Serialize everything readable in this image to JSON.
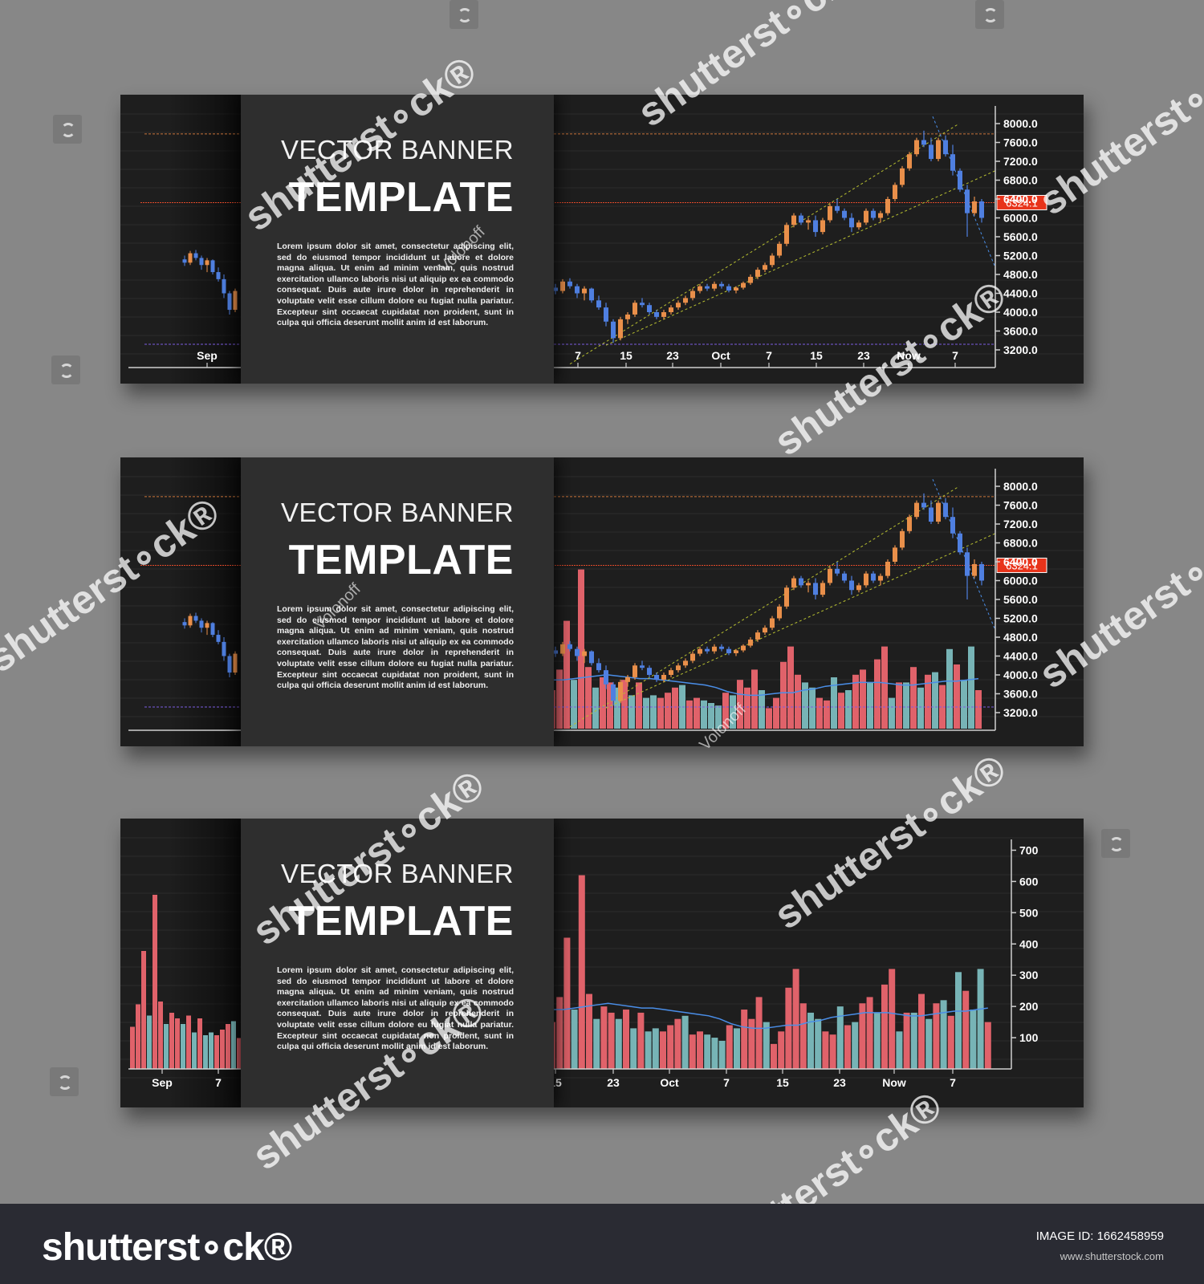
{
  "banner": {
    "title_line1": "VECTOR BANNER",
    "title_line2": "TEMPLATE",
    "body": "Lorem ipsum dolor sit amet, consectetur adipiscing elit, sed do eiusmod tempor incididunt ut labore et dolore magna aliqua. Ut enim ad minim veniam, quis nostrud exercitation ullamco laboris nisi ut aliquip ex ea commodo consequat. Duis aute irure dolor in reprehenderit in voluptate velit esse cillum dolore eu fugiat nulla pariatur. Excepteur sint occaecat cupidatat non proident, sunt in culpa qui officia deserunt mollit anim id est laborum."
  },
  "footer": {
    "logo": "shutterst∘ck®",
    "image_id": "IMAGE ID: 1662458959",
    "site": "www.shutterstock.com"
  },
  "watermark": {
    "text": "shutterst∘ck®",
    "author": "Volonoff"
  },
  "colors": {
    "candle_up": "#e98f4a",
    "candle_down": "#4f7fe0",
    "volume_up": "#e0626a",
    "volume_down": "#77b4b6",
    "price_line": "#e24a2a",
    "price_label_bg": "#e8331a",
    "resistance": "#c8733a",
    "support": "#7b5ce0",
    "channel": "#b8c030",
    "trend_down": "#4a8ee8",
    "moving_average": "#4a8ee8"
  },
  "chart_data": [
    {
      "type": "candlestick",
      "panel": "top",
      "y_ticks": [
        "8000.0",
        "7600.0",
        "7200.0",
        "6800.0",
        "6400.0",
        "6000.0",
        "5600.0",
        "5200.0",
        "4800.0",
        "4400.0",
        "4000.0",
        "3600.0",
        "3200.0"
      ],
      "ylim": [
        3200,
        8000
      ],
      "x_ticks": [
        "Sep",
        "7",
        "15",
        "23",
        "Oct",
        "7",
        "15",
        "23",
        "Now",
        "7"
      ],
      "current_price": "6324.1",
      "levels": {
        "resistance": 7780,
        "current": 6324.1,
        "support": 3320
      },
      "ohlc": [
        [
          4520,
          4600,
          4380,
          4450
        ],
        [
          4450,
          4700,
          4400,
          4650
        ],
        [
          4650,
          4720,
          4500,
          4550
        ],
        [
          4550,
          4600,
          4300,
          4400
        ],
        [
          4400,
          4550,
          4250,
          4500
        ],
        [
          4500,
          4520,
          4200,
          4250
        ],
        [
          4250,
          4350,
          4050,
          4100
        ],
        [
          4100,
          4200,
          3700,
          3800
        ],
        [
          3800,
          3850,
          3350,
          3450
        ],
        [
          3450,
          3900,
          3400,
          3850
        ],
        [
          3850,
          4000,
          3750,
          3950
        ],
        [
          3950,
          4250,
          3900,
          4200
        ],
        [
          4200,
          4300,
          4100,
          4150
        ],
        [
          4150,
          4200,
          3950,
          4000
        ],
        [
          4000,
          4050,
          3850,
          3900
        ],
        [
          3900,
          4050,
          3850,
          4000
        ],
        [
          4000,
          4150,
          3950,
          4100
        ],
        [
          4100,
          4250,
          4050,
          4200
        ],
        [
          4200,
          4350,
          4150,
          4300
        ],
        [
          4300,
          4500,
          4250,
          4450
        ],
        [
          4450,
          4600,
          4400,
          4550
        ],
        [
          4550,
          4600,
          4450,
          4500
        ],
        [
          4500,
          4650,
          4450,
          4600
        ],
        [
          4600,
          4650,
          4500,
          4550
        ],
        [
          4550,
          4600,
          4420,
          4460
        ],
        [
          4460,
          4550,
          4400,
          4520
        ],
        [
          4520,
          4650,
          4480,
          4620
        ],
        [
          4620,
          4800,
          4580,
          4750
        ],
        [
          4750,
          4950,
          4700,
          4900
        ],
        [
          4900,
          5050,
          4850,
          5000
        ],
        [
          5000,
          5250,
          4950,
          5200
        ],
        [
          5200,
          5500,
          5150,
          5450
        ],
        [
          5450,
          5900,
          5400,
          5850
        ],
        [
          5850,
          6100,
          5800,
          6050
        ],
        [
          6050,
          6100,
          5850,
          5900
        ],
        [
          5900,
          6000,
          5750,
          5950
        ],
        [
          5950,
          6050,
          5600,
          5700
        ],
        [
          5700,
          6000,
          5650,
          5950
        ],
        [
          5950,
          6300,
          5900,
          6250
        ],
        [
          6250,
          6400,
          6100,
          6150
        ],
        [
          6150,
          6200,
          5950,
          6000
        ],
        [
          6000,
          6100,
          5700,
          5800
        ],
        [
          5800,
          5950,
          5750,
          5900
        ],
        [
          5900,
          6200,
          5850,
          6150
        ],
        [
          6150,
          6200,
          5950,
          6000
        ],
        [
          6000,
          6150,
          5900,
          6100
        ],
        [
          6100,
          6450,
          6050,
          6400
        ],
        [
          6400,
          6750,
          6350,
          6700
        ],
        [
          6700,
          7100,
          6650,
          7050
        ],
        [
          7050,
          7400,
          7000,
          7350
        ],
        [
          7350,
          7700,
          7300,
          7650
        ],
        [
          7650,
          7850,
          7500,
          7550
        ],
        [
          7550,
          7700,
          7200,
          7250
        ],
        [
          7250,
          7700,
          7200,
          7650
        ],
        [
          7650,
          7750,
          7300,
          7350
        ],
        [
          7350,
          7550,
          6900,
          7000
        ],
        [
          7000,
          7050,
          6550,
          6600
        ],
        [
          6600,
          6700,
          5600,
          6100
        ],
        [
          6100,
          6450,
          6050,
          6350
        ],
        [
          6350,
          6400,
          5900,
          6000
        ]
      ]
    },
    {
      "type": "candlestick+volume",
      "panel": "middle",
      "y_ticks": [
        "8000.0",
        "7600.0",
        "7200.0",
        "6800.0",
        "6400.0",
        "6000.0",
        "5600.0",
        "5200.0",
        "4800.0",
        "4400.0",
        "4000.0",
        "3600.0",
        "3200.0"
      ],
      "ylim": [
        3200,
        8000
      ],
      "current_price": "6324.1",
      "note": "same OHLC series as top panel with volume bars overlaid"
    },
    {
      "type": "bar",
      "panel": "bottom",
      "y_ticks": [
        "700",
        "600",
        "500",
        "400",
        "300",
        "200",
        "100"
      ],
      "ylim": [
        0,
        750
      ],
      "x_ticks": [
        "Sep",
        "7",
        "15",
        "23",
        "Oct",
        "7",
        "15",
        "23",
        "Now",
        "7"
      ],
      "volume": [
        150,
        230,
        420,
        190,
        620,
        240,
        160,
        200,
        180,
        160,
        190,
        130,
        180,
        120,
        130,
        120,
        140,
        160,
        170,
        110,
        120,
        110,
        100,
        90,
        140,
        130,
        190,
        160,
        230,
        150,
        80,
        120,
        260,
        320,
        210,
        180,
        160,
        120,
        110,
        200,
        140,
        150,
        210,
        230,
        180,
        270,
        320,
        120,
        180,
        180,
        240,
        160,
        210,
        220,
        170,
        310,
        250,
        190,
        320,
        150
      ],
      "volume_up": [
        1,
        1,
        1,
        0,
        1,
        1,
        0,
        1,
        1,
        0,
        1,
        0,
        1,
        0,
        0,
        1,
        1,
        1,
        0,
        1,
        1,
        0,
        0,
        0,
        1,
        0,
        1,
        1,
        1,
        0,
        1,
        1,
        1,
        1,
        1,
        0,
        0,
        1,
        1,
        0,
        1,
        0,
        1,
        1,
        0,
        1,
        1,
        0,
        1,
        0,
        1,
        0,
        1,
        0,
        1,
        0,
        1,
        0,
        0,
        1
      ],
      "moving_average": [
        190,
        190,
        195,
        200,
        205,
        210,
        205,
        200,
        195,
        195,
        190,
        185,
        180,
        175,
        170,
        160,
        145,
        135,
        130,
        130,
        135,
        140,
        140,
        150,
        155,
        165,
        170,
        175,
        180,
        180,
        180,
        175,
        170,
        170,
        175,
        180,
        185,
        185,
        190,
        195
      ]
    }
  ]
}
